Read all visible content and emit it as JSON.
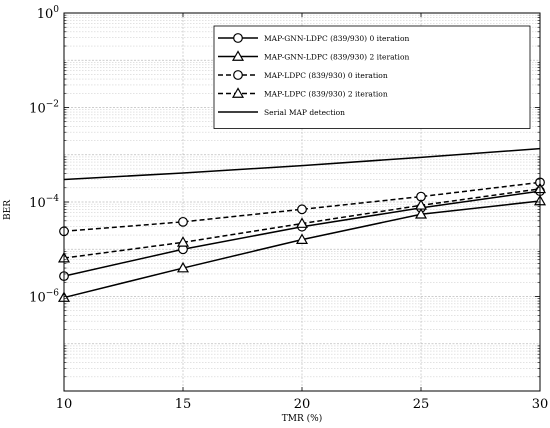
{
  "chart_data": {
    "type": "line",
    "title": "",
    "xlabel": "TMR (%)",
    "ylabel": "BER",
    "x_ticks": [
      10,
      15,
      20,
      25,
      30
    ],
    "x_tick_labels": [
      "10",
      "15",
      "20",
      "25",
      "30"
    ],
    "xlim": [
      10,
      30
    ],
    "y_scale": "log",
    "ylim": [
      1e-08,
      1
    ],
    "y_major_ticks": [
      {
        "value": 1.0,
        "base": "10",
        "exp": "0"
      },
      {
        "value": 0.01,
        "base": "10",
        "exp": "−2"
      },
      {
        "value": 0.0001,
        "base": "10",
        "exp": "−4"
      },
      {
        "value": 1e-06,
        "base": "10",
        "exp": "−6"
      }
    ],
    "grid": true,
    "legend_position": "top-right",
    "series": [
      {
        "name": "MAP-GNN-LDPC (839/930) 0 iteration",
        "x": [
          10,
          15,
          20,
          25,
          30
        ],
        "y": [
          2.7e-06,
          1e-05,
          3e-05,
          7.5e-05,
          0.00017
        ],
        "line": "solid",
        "marker": "circle",
        "color": "#000000"
      },
      {
        "name": "MAP-GNN-LDPC (839/930) 2 iteration",
        "x": [
          10,
          15,
          20,
          25,
          30
        ],
        "y": [
          9.5e-07,
          4e-06,
          1.6e-05,
          5.5e-05,
          0.000105
        ],
        "line": "solid",
        "marker": "triangle",
        "color": "#000000"
      },
      {
        "name": "MAP-LDPC (839/930) 0 iteration",
        "x": [
          10,
          15,
          20,
          25,
          30
        ],
        "y": [
          2.4e-05,
          3.8e-05,
          7e-05,
          0.00013,
          0.00026
        ],
        "line": "dashed",
        "marker": "circle",
        "color": "#000000"
      },
      {
        "name": "MAP-LDPC (839/930) 2 iteration",
        "x": [
          10,
          15,
          20,
          25,
          30
        ],
        "y": [
          6.5e-06,
          1.4e-05,
          3.5e-05,
          8.5e-05,
          0.00019
        ],
        "line": "dashed",
        "marker": "triangle",
        "color": "#000000"
      },
      {
        "name": "Serial MAP detection",
        "x": [
          10,
          15,
          20,
          25,
          30
        ],
        "y": [
          0.0003,
          0.00041,
          0.00059,
          0.00088,
          0.00135
        ],
        "line": "solid",
        "marker": "none",
        "color": "#000000"
      }
    ]
  }
}
